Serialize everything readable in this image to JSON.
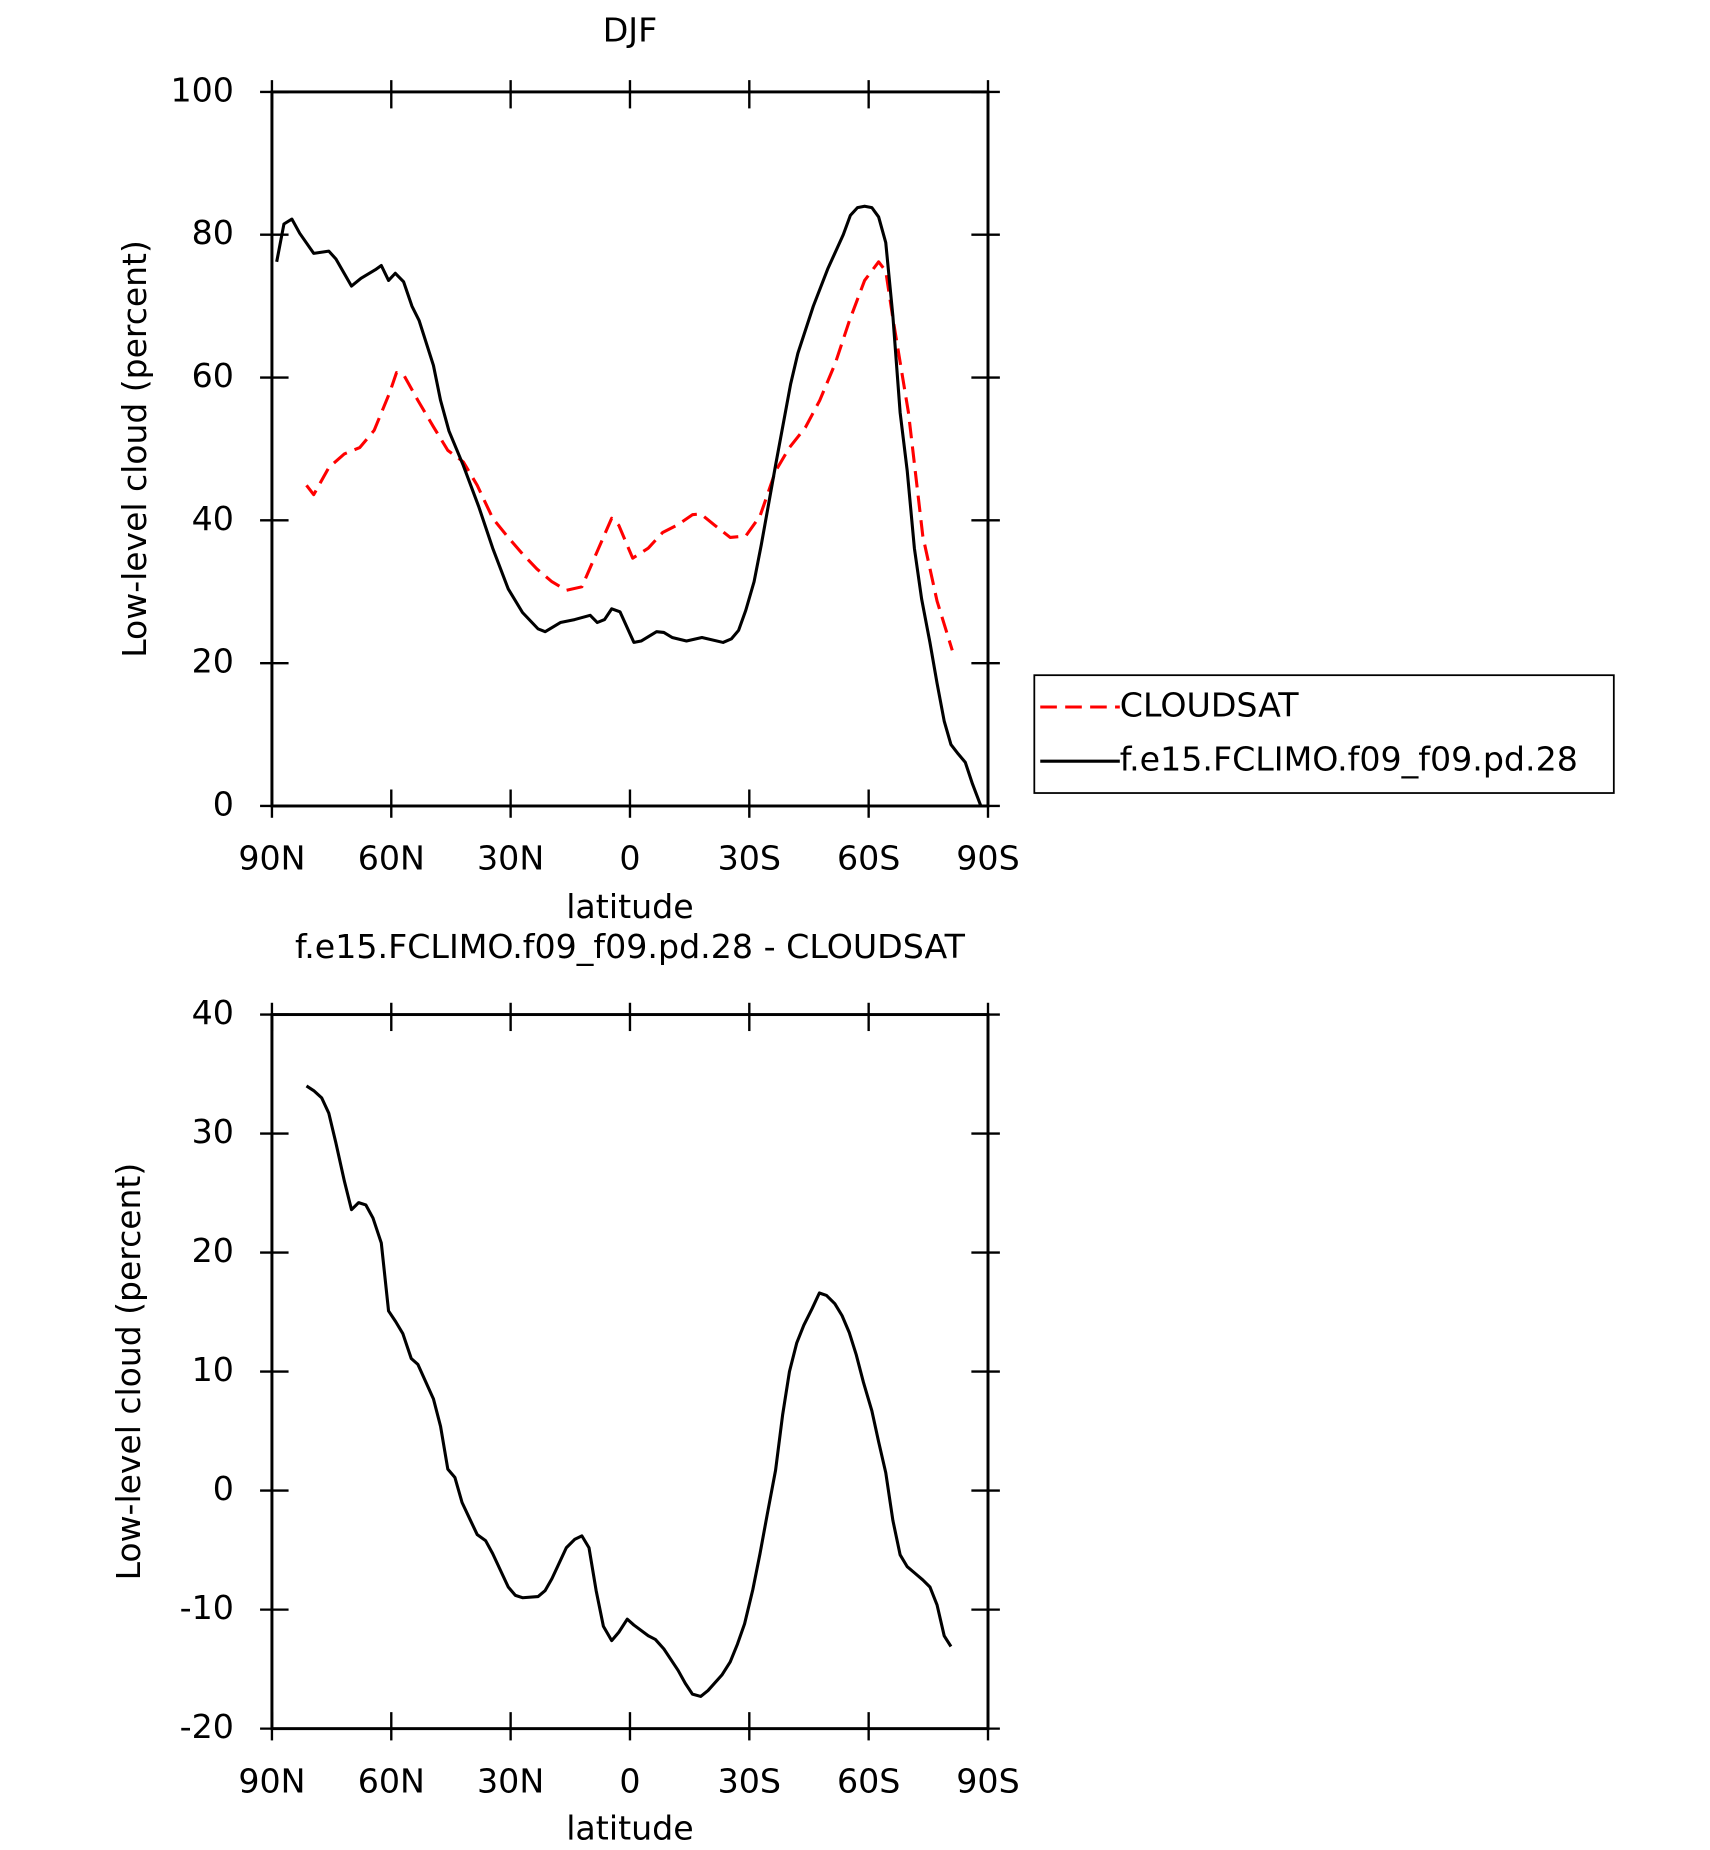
{
  "chart_data": [
    {
      "type": "line",
      "title": "DJF",
      "xlabel": "latitude",
      "ylabel": "Low-level cloud (percent)",
      "xlim": [
        90,
        -90
      ],
      "xticks": [
        {
          "value": 90,
          "label": "90N"
        },
        {
          "value": 60,
          "label": "60N"
        },
        {
          "value": 30,
          "label": "30N"
        },
        0,
        {
          "value": -30,
          "label": "30S"
        },
        {
          "value": -60,
          "label": "60S"
        },
        {
          "value": -90,
          "label": "90S"
        }
      ],
      "ylim": [
        0,
        100
      ],
      "yticks": [
        0,
        20,
        40,
        60,
        80,
        100
      ],
      "legend": "right",
      "series": [
        {
          "name": "CLOUDSAT",
          "color": "#ff0000",
          "dash": "dashed",
          "x": [
            81.3,
            79.5,
            75.7,
            71.8,
            67.9,
            64.3,
            60.4,
            58.7,
            56.9,
            53.3,
            49.4,
            45.8,
            41.9,
            38.4,
            34.5,
            30.9,
            27,
            23.4,
            19.6,
            16,
            12.1,
            8.5,
            4.6,
            2.8,
            -0.7,
            -4.6,
            -8.2,
            -12.1,
            -15.7,
            -17.8,
            -21.3,
            -25.2,
            -29.1,
            -32.7,
            -36.6,
            -40.1,
            -44.1,
            -47.7,
            -51.6,
            -55.2,
            -59,
            -62.5,
            -64.3,
            -66.1,
            -70,
            -73.6,
            -77.2,
            -81
          ],
          "values": [
            44.9,
            43.6,
            47.4,
            49.3,
            50.2,
            52.6,
            57.9,
            60.7,
            60.4,
            56.8,
            53.1,
            49.8,
            48.2,
            44.9,
            40.3,
            37.8,
            35.3,
            33.2,
            31.4,
            30.2,
            30.7,
            35.3,
            40.3,
            39.3,
            34.7,
            36.1,
            38.3,
            39.4,
            40.8,
            40.9,
            39.3,
            37.6,
            37.8,
            40.6,
            46.9,
            50.2,
            53,
            56.8,
            62,
            68,
            73.6,
            76.2,
            74.9,
            68.3,
            55.1,
            37.8,
            28.7,
            21.8
          ]
        },
        {
          "name": "f.e15.FCLIMO.f09_f09.pd.28",
          "color": "#000000",
          "dash": "solid",
          "x": [
            88.8,
            87,
            85,
            83,
            79.5,
            75.7,
            73.9,
            70,
            67.6,
            64,
            62.5,
            60.7,
            59,
            56.9,
            54.8,
            53,
            49.4,
            47.6,
            45.5,
            41.9,
            38,
            34.5,
            30.6,
            27,
            23.1,
            21.3,
            17.5,
            13.9,
            10,
            8.2,
            6.4,
            4.6,
            2.5,
            -1,
            -2.8,
            -6.7,
            -8.5,
            -10.6,
            -14.2,
            -18.1,
            -23.4,
            -25.5,
            -27.3,
            -29.1,
            -31.2,
            -33,
            -36.6,
            -40.4,
            -42.2,
            -46.1,
            -49.7,
            -53.6,
            -55.4,
            -57.2,
            -59,
            -60.8,
            -62.5,
            -64.3,
            -66.1,
            -67.9,
            -69.7,
            -71.5,
            -73.3,
            -75.4,
            -77.2,
            -79,
            -80.7,
            -82.5,
            -84.3,
            -86.1,
            -88.2
          ],
          "values": [
            76.2,
            81.5,
            82.2,
            80.2,
            77.4,
            77.7,
            76.6,
            72.8,
            73.9,
            75.1,
            75.7,
            73.6,
            74.6,
            73.4,
            70,
            68,
            61.7,
            56.8,
            52.5,
            47.7,
            41.9,
            36.1,
            30.4,
            27.1,
            24.8,
            24.4,
            25.7,
            26.1,
            26.7,
            25.7,
            26.1,
            27.6,
            27.2,
            22.9,
            23.1,
            24.4,
            24.3,
            23.6,
            23.1,
            23.6,
            22.9,
            23.4,
            24.6,
            27.4,
            31.4,
            36.5,
            47.7,
            59.1,
            63.4,
            70,
            75.2,
            80,
            82.7,
            83.8,
            84,
            83.8,
            82.5,
            78.9,
            68.6,
            55.1,
            46.9,
            36.1,
            29,
            22.9,
            17.2,
            11.9,
            8.6,
            7.3,
            6.1,
            3.1,
            0
          ]
        }
      ]
    },
    {
      "type": "line",
      "title": "f.e15.FCLIMO.f09_f09.pd.28 - CLOUDSAT",
      "xlabel": "latitude",
      "ylabel": "Low-level cloud (percent)",
      "xlim": [
        90,
        -90
      ],
      "xticks": [
        {
          "value": 90,
          "label": "90N"
        },
        {
          "value": 60,
          "label": "60N"
        },
        {
          "value": 30,
          "label": "30N"
        },
        0,
        {
          "value": -30,
          "label": "30S"
        },
        {
          "value": -60,
          "label": "60S"
        },
        {
          "value": -90,
          "label": "90S"
        }
      ],
      "ylim": [
        -20,
        40
      ],
      "yticks": [
        -20,
        -10,
        0,
        10,
        20,
        30,
        40
      ],
      "series": [
        {
          "color": "#000000",
          "dash": "solid",
          "x": [
            81.3,
            79.5,
            77.5,
            75.7,
            73.9,
            71.8,
            70,
            68.2,
            66.4,
            64.6,
            62.5,
            60.7,
            58.9,
            57.1,
            55,
            53.3,
            49.4,
            47.6,
            45.8,
            44,
            42.2,
            40.1,
            38.4,
            36.3,
            34.5,
            30.6,
            28.8,
            27,
            23.1,
            21.3,
            19.6,
            16,
            13.9,
            12.1,
            10.3,
            8.5,
            6.7,
            4.6,
            2.8,
            0.7,
            -1,
            -4.6,
            -6.4,
            -8.5,
            -12.1,
            -13.9,
            -15.7,
            -17.8,
            -19.6,
            -23.1,
            -25.2,
            -27,
            -28.8,
            -30.9,
            -32.7,
            -34.5,
            -36.6,
            -38.4,
            -40.1,
            -41.9,
            -43.7,
            -45.8,
            -47.6,
            -49.4,
            -51.5,
            -53.3,
            -55.1,
            -56.9,
            -58.7,
            -60.8,
            -62.5,
            -64.3,
            -66.1,
            -67.9,
            -69.7,
            -71.5,
            -73.6,
            -75.4,
            -77.2,
            -79,
            -80.7
          ],
          "values": [
            34,
            33.6,
            33,
            31.7,
            29.2,
            26,
            23.6,
            24.2,
            24,
            22.9,
            20.8,
            15.1,
            14.2,
            13.2,
            11.1,
            10.6,
            7.7,
            5.4,
            1.8,
            1.1,
            -1,
            -2.5,
            -3.7,
            -4.2,
            -5.3,
            -8.1,
            -8.8,
            -9,
            -8.9,
            -8.4,
            -7.4,
            -4.8,
            -4.1,
            -3.8,
            -4.8,
            -8.4,
            -11.4,
            -12.6,
            -11.9,
            -10.8,
            -11.3,
            -12.2,
            -12.5,
            -13.3,
            -15.1,
            -16.2,
            -17.1,
            -17.3,
            -16.8,
            -15.5,
            -14.4,
            -12.9,
            -11.2,
            -8.3,
            -5.3,
            -2,
            1.7,
            6.4,
            10,
            12.4,
            13.9,
            15.3,
            16.6,
            16.4,
            15.7,
            14.7,
            13.3,
            11.4,
            9.1,
            6.7,
            4.1,
            1.5,
            -2.5,
            -5.4,
            -6.4,
            -6.9,
            -7.5,
            -8.1,
            -9.6,
            -12.2,
            -13.1
          ]
        }
      ]
    }
  ]
}
